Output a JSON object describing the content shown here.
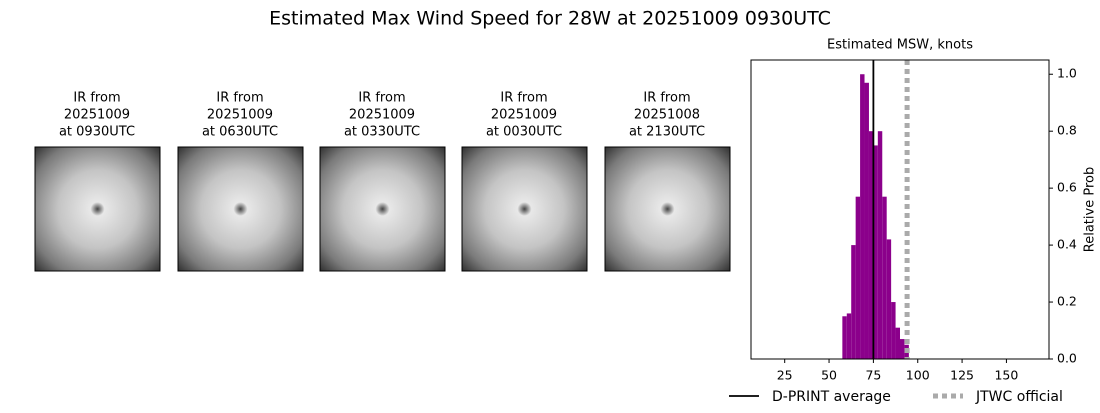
{
  "title": "Estimated Max Wind Speed for 28W at 20251009 0930UTC",
  "panels": [
    {
      "caption": [
        "IR from",
        "20251009",
        "at 0930UTC"
      ]
    },
    {
      "caption": [
        "IR from",
        "20251009",
        "at 0630UTC"
      ]
    },
    {
      "caption": [
        "IR from",
        "20251009",
        "at 0330UTC"
      ]
    },
    {
      "caption": [
        "IR from",
        "20251009",
        "at 0030UTC"
      ]
    },
    {
      "caption": [
        "IR from",
        "20251008",
        "at 2130UTC"
      ]
    }
  ],
  "chart_data": {
    "type": "histogram",
    "title": "Estimated MSW, knots",
    "ylabel": "Relative Prob",
    "bins": [
      57.5,
      60,
      62.5,
      65,
      67.5,
      70,
      72.5,
      75,
      77.5,
      80,
      82.5,
      85,
      87.5,
      90,
      92.5,
      95
    ],
    "values": [
      0.15,
      0.16,
      0.4,
      0.57,
      1.0,
      0.97,
      0.8,
      0.75,
      0.8,
      0.57,
      0.42,
      0.2,
      0.11,
      0.07,
      0.05
    ],
    "color": "#8b008b",
    "xlim": [
      6,
      174
    ],
    "ylim": [
      0,
      1.05
    ],
    "xticks": [
      25,
      50,
      75,
      100,
      125,
      150
    ],
    "yticks": [
      {
        "value": 0,
        "label": "0.0"
      },
      0.2,
      0.4,
      0.6,
      0.8,
      {
        "value": 1,
        "label": "1.0"
      }
    ],
    "lines": [
      {
        "name": "D-PRINT average",
        "value": 75,
        "color": "#000000",
        "style": "solid"
      },
      {
        "name": "JTWC official",
        "value": 94,
        "color": "#aaaaaa",
        "style": "dotted"
      }
    ]
  }
}
